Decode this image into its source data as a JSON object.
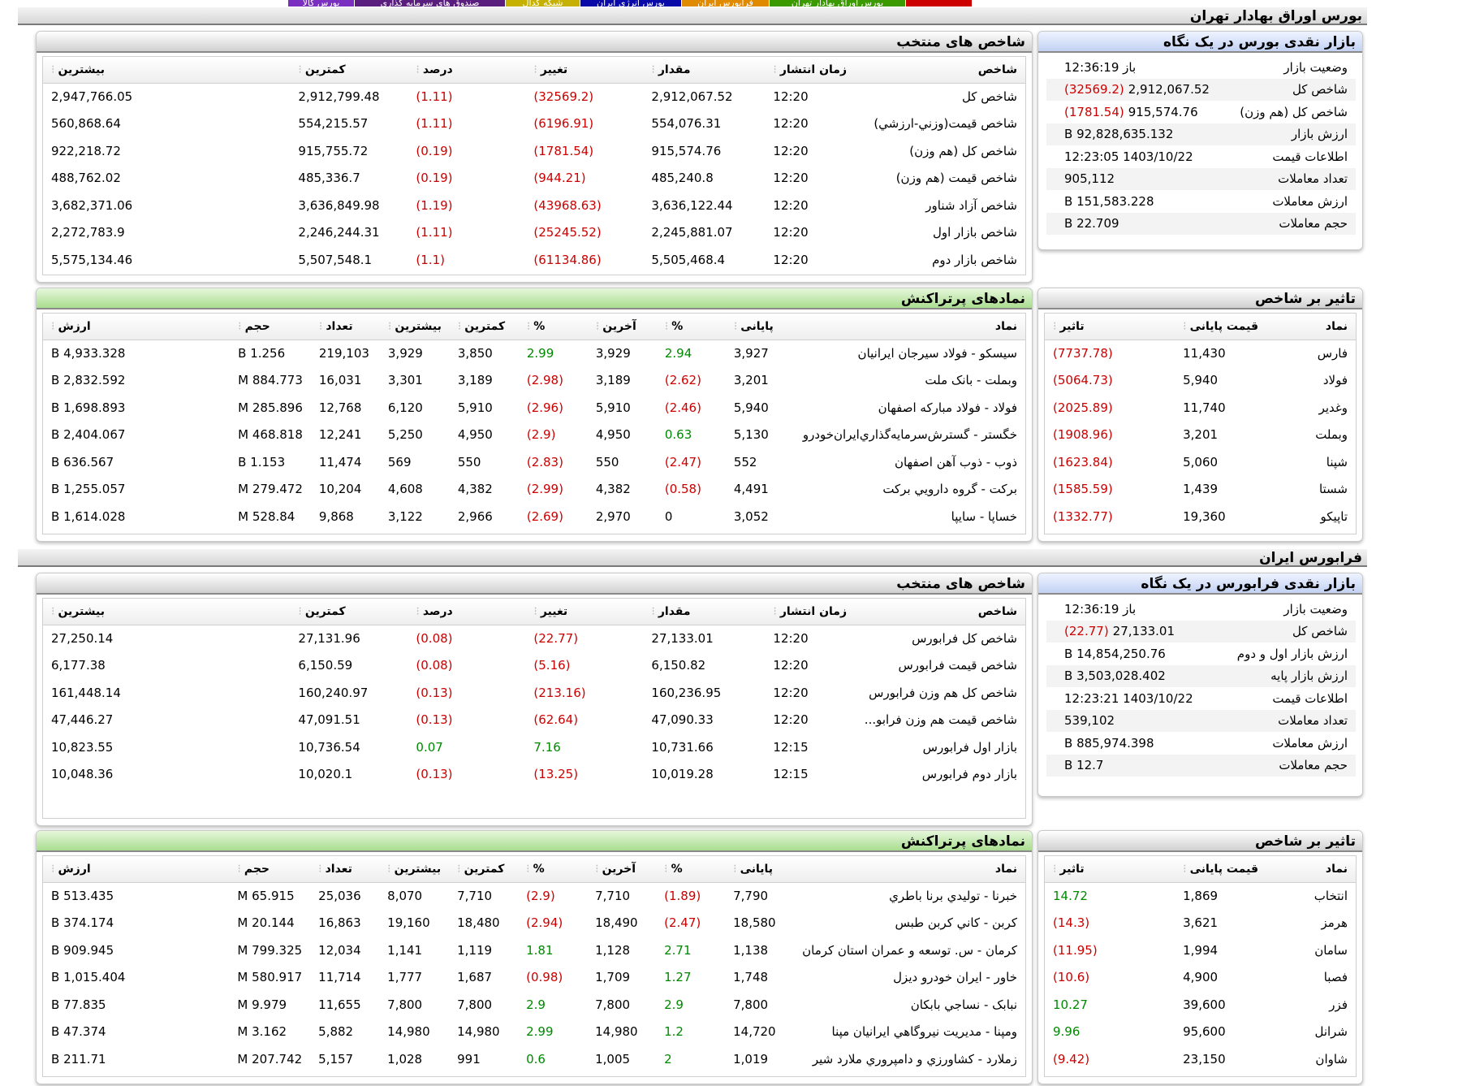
{
  "top_tabs": [
    {
      "label": "بورس کالا",
      "color": "#7a2fc1"
    },
    {
      "label": "صندوق های سرمایه گذاری",
      "color": "#5a1e7e"
    },
    {
      "label": "شبکه کدال",
      "color": "#c7b100"
    },
    {
      "label": "بورس انرژی ایران",
      "color": "#0a0aa8"
    },
    {
      "label": "فرابورس ایران",
      "color": "#e08a00"
    },
    {
      "label": "بورس اوراق بهادار تهران",
      "color": "#3a9a00"
    },
    {
      "label": "",
      "color": "#cc0000"
    }
  ],
  "colors": {
    "negative": "#cc0000",
    "positive": "#008800"
  },
  "tse": {
    "header": "بورس اوراق بهادار تهران",
    "glance": {
      "title": "بازار نقدی بورس در یک نگاه",
      "rows": [
        {
          "label": "وضعیت بازار",
          "value": "باز 12:36:19",
          "extra": ""
        },
        {
          "label": "شاخص کل",
          "value": "2,912,067.52",
          "extra": "(32569.2)"
        },
        {
          "label": "شاخص کل (هم وزن)",
          "value": "915,574.76",
          "extra": "(1781.54)"
        },
        {
          "label": "ارزش بازار",
          "value": "92,828,635.132 B",
          "extra": ""
        },
        {
          "label": "اطلاعات قیمت",
          "value": "1403/10/22 12:23:05",
          "extra": ""
        },
        {
          "label": "تعداد معاملات",
          "value": "905,112",
          "extra": ""
        },
        {
          "label": "ارزش معاملات",
          "value": "151,583.228 B",
          "extra": ""
        },
        {
          "label": "حجم معاملات",
          "value": "22.709 B",
          "extra": ""
        }
      ]
    },
    "indices": {
      "title": "شاخص های منتخب",
      "headers": [
        "شاخص",
        "زمان انتشار",
        "مقدار",
        "تغییر",
        "درصد",
        "کمترین",
        "بیشترین"
      ],
      "rows": [
        [
          "شاخص کل",
          "12:20",
          "2,912,067.52",
          "(32569.2)",
          "(1.11)",
          "2,912,799.48",
          "2,947,766.05"
        ],
        [
          "شاخص قیمت(وزني-ارزشي)",
          "12:20",
          "554,076.31",
          "(6196.91)",
          "(1.11)",
          "554,215.57",
          "560,868.64"
        ],
        [
          "شاخص کل (هم وزن)",
          "12:20",
          "915,574.76",
          "(1781.54)",
          "(0.19)",
          "915,755.72",
          "922,218.72"
        ],
        [
          "شاخص قیمت (هم وزن)",
          "12:20",
          "485,240.8",
          "(944.21)",
          "(0.19)",
          "485,336.7",
          "488,762.02"
        ],
        [
          "شاخص آزاد شناور",
          "12:20",
          "3,636,122.44",
          "(43968.63)",
          "(1.19)",
          "3,636,849.98",
          "3,682,371.06"
        ],
        [
          "شاخص بازار اول",
          "12:20",
          "2,245,881.07",
          "(25245.52)",
          "(1.11)",
          "2,246,244.31",
          "2,272,783.9"
        ],
        [
          "شاخص بازار دوم",
          "12:20",
          "5,505,468.4",
          "(61134.86)",
          "(1.1)",
          "5,507,548.1",
          "5,575,134.46"
        ]
      ]
    },
    "impact": {
      "title": "تاثیر بر شاخص",
      "headers": [
        "نماد",
        "قیمت پایانی",
        "تاثیر"
      ],
      "rows": [
        [
          "فارس",
          "11,430",
          "(7737.78)"
        ],
        [
          "فولاد",
          "5,940",
          "(5064.73)"
        ],
        [
          "وغدیر",
          "11,740",
          "(2025.89)"
        ],
        [
          "وبملت",
          "3,201",
          "(1908.96)"
        ],
        [
          "شپنا",
          "5,060",
          "(1623.84)"
        ],
        [
          "شستا",
          "1,439",
          "(1585.59)"
        ],
        [
          "تاپیکو",
          "19,360",
          "(1332.77)"
        ]
      ]
    },
    "active": {
      "title": "نمادهای پرتراکنش",
      "headers": [
        "نماد",
        "پایانی",
        "%",
        "آخرین",
        "%",
        "کمترین",
        "بیشترین",
        "تعداد",
        "حجم",
        "ارزش"
      ],
      "rows": [
        [
          "سیسکو - فولاد سیرجان ایرانیان",
          "3,927",
          "2.94",
          "3,929",
          "2.99",
          "3,850",
          "3,929",
          "219,103",
          "1.256 B",
          "4,933.328 B"
        ],
        [
          "وبملت - بانک ملت",
          "3,201",
          "(2.62)",
          "3,189",
          "(2.98)",
          "3,189",
          "3,301",
          "16,031",
          "884.773 M",
          "2,832.592 B"
        ],
        [
          "فولاد - فولاد مبارکه اصفهان",
          "5,940",
          "(2.46)",
          "5,910",
          "(2.96)",
          "5,910",
          "6,120",
          "12,768",
          "285.896 M",
          "1,698.893 B"
        ],
        [
          "خگستر - گسترش‌سرمایه‌گذاري‌ایران‌خودرو",
          "5,130",
          "0.63",
          "4,950",
          "(2.9)",
          "4,950",
          "5,250",
          "12,241",
          "468.818 M",
          "2,404.067 B"
        ],
        [
          "ذوب - ذوب آهن اصفهان",
          "552",
          "(2.47)",
          "550",
          "(2.83)",
          "550",
          "569",
          "11,474",
          "1.153 B",
          "636.567 B"
        ],
        [
          "برکت - گروه دارويي برکت",
          "4,491",
          "(0.58)",
          "4,382",
          "(2.99)",
          "4,382",
          "4,608",
          "10,204",
          "279.472 M",
          "1,255.057 B"
        ],
        [
          "خساپا - سايپا",
          "3,052",
          "0",
          "2,970",
          "(2.69)",
          "2,966",
          "3,122",
          "9,868",
          "528.84 M",
          "1,614.028 B"
        ]
      ]
    }
  },
  "ifb": {
    "header": "فرابورس ایران",
    "glance": {
      "title": "بازار نقدی فرابورس در یک نگاه",
      "rows": [
        {
          "label": "وضعیت بازار",
          "value": "باز 12:36:19",
          "extra": ""
        },
        {
          "label": "شاخص کل",
          "value": "27,133.01",
          "extra": "(22.77)"
        },
        {
          "label": "ارزش بازار اول و دوم",
          "value": "14,854,250.76 B",
          "extra": ""
        },
        {
          "label": "ارزش بازار پایه",
          "value": "3,503,028.402 B",
          "extra": ""
        },
        {
          "label": "اطلاعات قیمت",
          "value": "1403/10/22 12:23:21",
          "extra": ""
        },
        {
          "label": "تعداد معاملات",
          "value": "539,102",
          "extra": ""
        },
        {
          "label": "ارزش معاملات",
          "value": "885,974.398 B",
          "extra": ""
        },
        {
          "label": "حجم معاملات",
          "value": "12.7 B",
          "extra": ""
        }
      ]
    },
    "indices": {
      "title": "شاخص های منتخب",
      "headers": [
        "شاخص",
        "زمان انتشار",
        "مقدار",
        "تغییر",
        "درصد",
        "کمترین",
        "بیشترین"
      ],
      "rows": [
        [
          "شاخص کل فرابورس",
          "12:20",
          "27,133.01",
          "(22.77)",
          "(0.08)",
          "27,131.96",
          "27,250.14"
        ],
        [
          "شاخص قیمت فرابورس",
          "12:20",
          "6,150.82",
          "(5.16)",
          "(0.08)",
          "6,150.59",
          "6,177.38"
        ],
        [
          "شاخص کل هم وزن فرابورس",
          "12:20",
          "160,236.95",
          "(213.16)",
          "(0.13)",
          "160,240.97",
          "161,448.14"
        ],
        [
          "شاخص قیمت هم وزن فرابو...",
          "12:20",
          "47,090.33",
          "(62.64)",
          "(0.13)",
          "47,091.51",
          "47,446.27"
        ],
        [
          "بازار اول فرابورس",
          "12:15",
          "10,731.66",
          "7.16",
          "0.07",
          "10,736.54",
          "10,823.55"
        ],
        [
          "بازار دوم فرابورس",
          "12:15",
          "10,019.28",
          "(13.25)",
          "(0.13)",
          "10,020.1",
          "10,048.36"
        ]
      ]
    },
    "impact": {
      "title": "تاثیر بر شاخص",
      "headers": [
        "نماد",
        "قیمت پایانی",
        "تاثیر"
      ],
      "rows": [
        [
          "انتخاب",
          "1,869",
          "14.72"
        ],
        [
          "هرمز",
          "3,621",
          "(14.3)"
        ],
        [
          "سامان",
          "1,994",
          "(11.95)"
        ],
        [
          "فصبا",
          "4,900",
          "(10.6)"
        ],
        [
          "فزر",
          "39,600",
          "10.27"
        ],
        [
          "شرانل",
          "95,600",
          "9.96"
        ],
        [
          "شاوان",
          "23,150",
          "(9.42)"
        ]
      ]
    },
    "active": {
      "title": "نمادهای پرتراکنش",
      "headers": [
        "نماد",
        "پایانی",
        "%",
        "آخرین",
        "%",
        "کمترین",
        "بیشترین",
        "تعداد",
        "حجم",
        "ارزش"
      ],
      "rows": [
        [
          "خبرنا - تولیدي برنا باطري",
          "7,790",
          "(1.89)",
          "7,710",
          "(2.9)",
          "7,710",
          "8,070",
          "25,036",
          "65.915 M",
          "513.435 B"
        ],
        [
          "کربن - کاني کربن طبس",
          "18,580",
          "(2.47)",
          "18,490",
          "(2.94)",
          "18,480",
          "19,160",
          "16,863",
          "20.144 M",
          "374.174 B"
        ],
        [
          "کرمان - س. توسعه و عمران استان کرمان",
          "1,138",
          "2.71",
          "1,128",
          "1.81",
          "1,119",
          "1,141",
          "12,034",
          "799.325 M",
          "909.945 B"
        ],
        [
          "خاور - ایران خودرو دیزل",
          "1,748",
          "1.27",
          "1,709",
          "(0.98)",
          "1,687",
          "1,777",
          "11,714",
          "580.917 M",
          "1,015.404 B"
        ],
        [
          "نبابک - نساجي بابکان",
          "7,800",
          "2.9",
          "7,800",
          "2.9",
          "7,800",
          "7,800",
          "11,655",
          "9.979 M",
          "77.835 B"
        ],
        [
          "ومپنا - مدیریت نیروگاهي ایرانیان مپنا",
          "14,720",
          "1.2",
          "14,980",
          "2.99",
          "14,980",
          "14,980",
          "5,882",
          "3.162 M",
          "47.374 B"
        ],
        [
          "زملارد - کشاورزي و دامپروري ملارد شير",
          "1,019",
          "2",
          "1,005",
          "0.6",
          "991",
          "1,028",
          "5,157",
          "207.742 M",
          "211.71 B"
        ]
      ]
    }
  }
}
